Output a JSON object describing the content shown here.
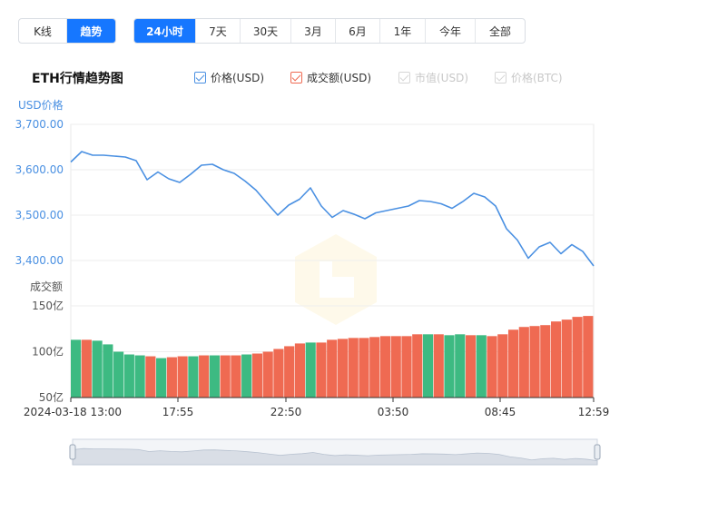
{
  "mode_tabs": [
    {
      "label": "K线",
      "active": false
    },
    {
      "label": "趋势",
      "active": true
    }
  ],
  "range_tabs": [
    {
      "label": "24小时",
      "active": true
    },
    {
      "label": "7天",
      "active": false
    },
    {
      "label": "30天",
      "active": false
    },
    {
      "label": "3月",
      "active": false
    },
    {
      "label": "6月",
      "active": false
    },
    {
      "label": "1年",
      "active": false
    },
    {
      "label": "今年",
      "active": false
    },
    {
      "label": "全部",
      "active": false
    }
  ],
  "chart_title": "ETH行情趋势图",
  "legend": [
    {
      "label": "价格(USD)",
      "checked": true,
      "color": "#4a90e2"
    },
    {
      "label": "成交额(USD)",
      "checked": true,
      "color": "#ef6a52"
    },
    {
      "label": "市值(USD)",
      "checked": false,
      "color": "#d6d6d6"
    },
    {
      "label": "价格(BTC)",
      "checked": false,
      "color": "#d6d6d6"
    }
  ],
  "colors": {
    "price_line": "#4a90e2",
    "volume_up": "#ef6a52",
    "volume_down": "#3dba82",
    "grid": "#eeeeee",
    "axis_text": "#4a90e2",
    "navigator_fill": "#d9dee6"
  },
  "chart_data": {
    "type": "line",
    "price_axis": {
      "title": "USD价格",
      "ticks": [
        "3,700.00",
        "3,600.00",
        "3,500.00",
        "3,400.00"
      ],
      "tick_values": [
        3700,
        3600,
        3500,
        3400
      ],
      "ylim": [
        3400,
        3700
      ]
    },
    "volume_axis": {
      "title": "成交额",
      "ticks": [
        "150亿",
        "100亿",
        "50亿"
      ],
      "tick_values": [
        150,
        100,
        50
      ],
      "ylim": [
        50,
        150
      ]
    },
    "x_ticks": [
      "2024-03-18 13:00",
      "17:55",
      "22:50",
      "03:50",
      "08:45",
      "12:59"
    ],
    "x_range": [
      "2024-03-18 13:00",
      "2024-03-19 12:59"
    ],
    "series": [
      {
        "kind": "price",
        "x": [
          "2024-03-18 13:00",
          "2024-03-18 13:30",
          "2024-03-18 14:00",
          "2024-03-18 14:30",
          "2024-03-18 15:00",
          "2024-03-18 15:30",
          "2024-03-18 16:00",
          "2024-03-18 16:30",
          "2024-03-18 17:00",
          "2024-03-18 17:30",
          "2024-03-18 18:00",
          "2024-03-18 18:30",
          "2024-03-18 19:00",
          "2024-03-18 19:30",
          "2024-03-18 20:00",
          "2024-03-18 20:30",
          "2024-03-18 21:00",
          "2024-03-18 21:30",
          "2024-03-18 22:00",
          "2024-03-18 22:30",
          "2024-03-18 23:00",
          "2024-03-18 23:30",
          "2024-03-19 00:00",
          "2024-03-19 00:30",
          "2024-03-19 01:00",
          "2024-03-19 01:30",
          "2024-03-19 02:00",
          "2024-03-19 02:30",
          "2024-03-19 03:00",
          "2024-03-19 03:30",
          "2024-03-19 04:00",
          "2024-03-19 04:30",
          "2024-03-19 05:00",
          "2024-03-19 05:30",
          "2024-03-19 06:00",
          "2024-03-19 06:30",
          "2024-03-19 07:00",
          "2024-03-19 07:30",
          "2024-03-19 08:00",
          "2024-03-19 08:30",
          "2024-03-19 09:00",
          "2024-03-19 09:30",
          "2024-03-19 10:00",
          "2024-03-19 10:30",
          "2024-03-19 11:00",
          "2024-03-19 11:30",
          "2024-03-19 12:00",
          "2024-03-19 12:30",
          "2024-03-19 12:59"
        ],
        "values": [
          3617,
          3640,
          3632,
          3632,
          3630,
          3628,
          3620,
          3578,
          3595,
          3580,
          3572,
          3590,
          3610,
          3612,
          3600,
          3592,
          3575,
          3555,
          3527,
          3500,
          3522,
          3535,
          3560,
          3520,
          3495,
          3510,
          3502,
          3492,
          3505,
          3510,
          3515,
          3520,
          3532,
          3530,
          3525,
          3515,
          3530,
          3548,
          3540,
          3520,
          3470,
          3445,
          3405,
          3430,
          3440,
          3415,
          3435,
          3420,
          3388
        ]
      },
      {
        "kind": "volume",
        "values": [
          113,
          113,
          112,
          108,
          100,
          97,
          96,
          95,
          93,
          94,
          95,
          95,
          96,
          96,
          96,
          96,
          97,
          98,
          100,
          103,
          106,
          109,
          110,
          110,
          113,
          114,
          115,
          115,
          116,
          117,
          117,
          117,
          119,
          119,
          119,
          118,
          119,
          118,
          118,
          117,
          119,
          124,
          127,
          128,
          129,
          133,
          135,
          138,
          139
        ],
        "colors": [
          "down",
          "up",
          "down",
          "down",
          "down",
          "down",
          "down",
          "up",
          "down",
          "up",
          "up",
          "down",
          "up",
          "down",
          "up",
          "up",
          "down",
          "up",
          "up",
          "up",
          "up",
          "up",
          "down",
          "up",
          "up",
          "up",
          "up",
          "up",
          "up",
          "up",
          "up",
          "up",
          "up",
          "down",
          "up",
          "down",
          "down",
          "up",
          "down",
          "up",
          "up",
          "up",
          "up",
          "up",
          "up",
          "up",
          "up",
          "up",
          "up"
        ]
      }
    ],
    "grid": true
  }
}
